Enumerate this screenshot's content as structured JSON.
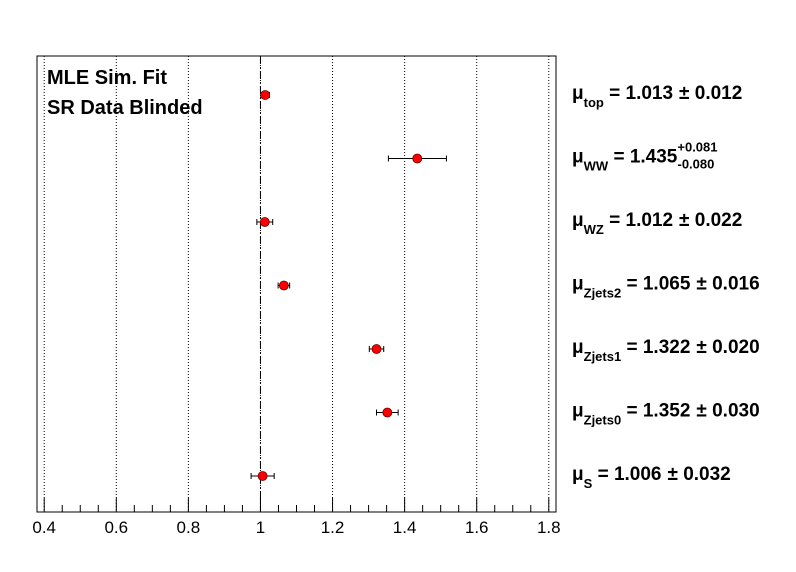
{
  "chart_data": {
    "type": "scatter",
    "title": "",
    "xlabel": "",
    "ylabel": "",
    "xlim": [
      0.38,
      1.82
    ],
    "x_ticks": [
      "0.4",
      "0.6",
      "0.8",
      "1",
      "1.2",
      "1.4",
      "1.6",
      "1.8"
    ],
    "x_tick_values": [
      0.4,
      0.6,
      0.8,
      1.0,
      1.2,
      1.4,
      1.6,
      1.8
    ],
    "reference_line": 1.0,
    "grid": true,
    "annotations": [
      "MLE Sim. Fit",
      "SR Data Blinded"
    ],
    "point_color": "#ff0000",
    "points": [
      {
        "param": "μ",
        "sub": "top",
        "value": 1.013,
        "value_text": "1.013",
        "err_up": 0.012,
        "err_down": 0.012,
        "err_text": "± 0.012"
      },
      {
        "param": "μ",
        "sub": "WW",
        "value": 1.435,
        "value_text": "1.435",
        "err_up": 0.081,
        "err_down": 0.08,
        "up_text": "+0.081",
        "down_text": "-0.080"
      },
      {
        "param": "μ",
        "sub": "WZ",
        "value": 1.012,
        "value_text": "1.012",
        "err_up": 0.022,
        "err_down": 0.022,
        "err_text": "± 0.022"
      },
      {
        "param": "μ",
        "sub": "Zjets2",
        "value": 1.065,
        "value_text": "1.065",
        "err_up": 0.016,
        "err_down": 0.016,
        "err_text": "± 0.016"
      },
      {
        "param": "μ",
        "sub": "Zjets1",
        "value": 1.322,
        "value_text": "1.322",
        "err_up": 0.02,
        "err_down": 0.02,
        "err_text": "± 0.020"
      },
      {
        "param": "μ",
        "sub": "Zjets0",
        "value": 1.352,
        "value_text": "1.352",
        "err_up": 0.03,
        "err_down": 0.03,
        "err_text": "± 0.030"
      },
      {
        "param": "μ",
        "sub": "S",
        "value": 1.006,
        "value_text": "1.006",
        "err_up": 0.032,
        "err_down": 0.032,
        "err_text": "± 0.032"
      }
    ]
  }
}
